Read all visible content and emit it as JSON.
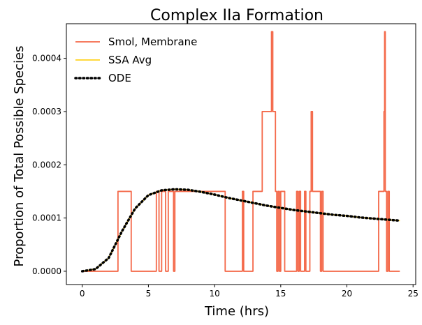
{
  "chart_data": {
    "type": "line",
    "title": "Complex IIa Formation",
    "xlabel": "Time (hrs)",
    "ylabel": "Proportion of Total Possible Species",
    "xlim": [
      -1.2,
      25.2
    ],
    "ylim": [
      -2.5e-05,
      0.000465
    ],
    "xticks": [
      0,
      5,
      10,
      15,
      20,
      25
    ],
    "xtick_labels": [
      "0",
      "5",
      "10",
      "15",
      "20",
      "25"
    ],
    "yticks": [
      0,
      0.0001,
      0.0002,
      0.0003,
      0.0004
    ],
    "ytick_labels": [
      "0.0000",
      "0.0001",
      "0.0002",
      "0.0003",
      "0.0004"
    ],
    "grid": false,
    "legend_position": "top-left",
    "series": [
      {
        "name": "Smol, Membrane",
        "color": "#f4694a",
        "style": "step",
        "x": [
          0,
          2.7,
          3.7,
          5.6,
          5.8,
          6.0,
          6.3,
          6.5,
          6.9,
          7.0,
          10.5,
          10.8,
          12.1,
          12.2,
          12.9,
          13.6,
          14.2,
          14.3,
          14.4,
          14.6,
          14.7,
          14.8,
          14.9,
          15.0,
          15.3,
          16.2,
          16.3,
          16.4,
          16.5,
          16.8,
          16.9,
          17.2,
          17.3,
          17.4,
          17.5,
          17.9,
          18.0,
          18.1,
          18.2,
          22.4,
          22.8,
          22.85,
          22.9,
          23.0,
          23.1,
          23.2,
          23.3,
          23.4,
          24.0
        ],
        "y": [
          0,
          0.00015,
          0,
          0.00015,
          0,
          0.00015,
          0,
          0.00015,
          0,
          0.00015,
          0.00015,
          0,
          0.00015,
          0,
          0.00015,
          0.0003,
          0.0003,
          0.00045,
          0.0003,
          0.00015,
          0,
          0.00015,
          0,
          0.00015,
          0,
          0.00015,
          0,
          0.00015,
          0,
          0.00015,
          0,
          0.00015,
          0.0003,
          0.00015,
          0.00015,
          0.00015,
          0,
          0.00015,
          0,
          0.00015,
          0.0003,
          0.00045,
          0.00015,
          0,
          0.00015,
          0,
          0,
          0,
          0
        ]
      },
      {
        "name": "SSA Avg",
        "color": "#ffd21f",
        "style": "solid",
        "x": [
          0,
          1,
          2,
          3,
          4,
          5,
          6,
          7,
          8,
          9,
          10,
          11,
          12,
          13,
          14,
          15,
          16,
          17,
          18,
          19,
          20,
          21,
          22,
          23,
          24
        ],
        "y": [
          0,
          4e-06,
          2.5e-05,
          7.5e-05,
          0.000118,
          0.000143,
          0.000152,
          0.000154,
          0.000153,
          0.000149,
          0.000144,
          0.000138,
          0.000133,
          0.000128,
          0.000123,
          0.000119,
          0.000115,
          0.000112,
          0.000109,
          0.000106,
          0.000104,
          0.000101,
          9.9e-05,
          9.7e-05,
          9.5e-05
        ]
      },
      {
        "name": "ODE",
        "color": "#000000",
        "style": "dotted",
        "x": [
          0,
          1,
          2,
          3,
          4,
          5,
          6,
          7,
          8,
          9,
          10,
          11,
          12,
          13,
          14,
          15,
          16,
          17,
          18,
          19,
          20,
          21,
          22,
          23,
          24
        ],
        "y": [
          0,
          4e-06,
          2.5e-05,
          7.5e-05,
          0.000118,
          0.000143,
          0.000152,
          0.000154,
          0.000153,
          0.000149,
          0.000144,
          0.000138,
          0.000133,
          0.000128,
          0.000123,
          0.000119,
          0.000115,
          0.000112,
          0.000109,
          0.000106,
          0.000104,
          0.000101,
          9.9e-05,
          9.7e-05,
          9.5e-05
        ]
      }
    ]
  }
}
